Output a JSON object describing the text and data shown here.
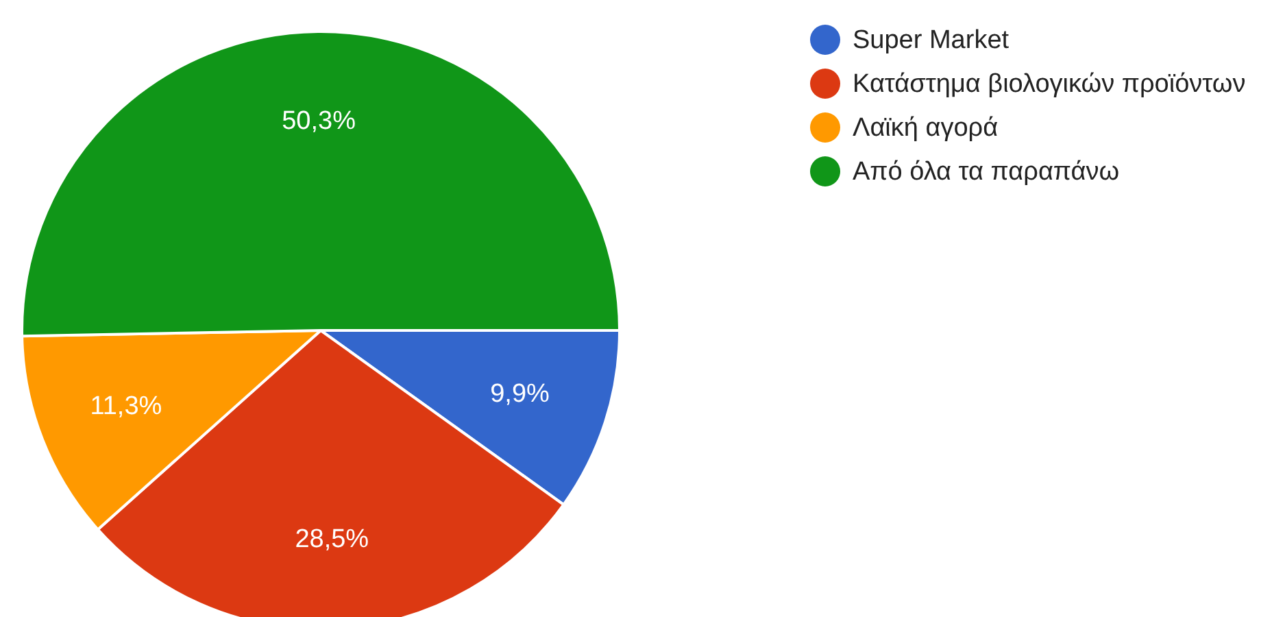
{
  "chart_data": {
    "type": "pie",
    "categories": [
      "Super Market",
      "Κατάστημα βιολογικών προϊόντων",
      "Λαϊκή αγορά",
      "Από όλα τα παραπάνω"
    ],
    "values": [
      9.9,
      28.5,
      11.3,
      50.3
    ],
    "colors": [
      "#3366cc",
      "#dc3912",
      "#ff9900",
      "#109618"
    ],
    "value_labels": [
      "9,9%",
      "28,5%",
      "11,3%",
      "50,3%"
    ],
    "legend": "top right"
  }
}
